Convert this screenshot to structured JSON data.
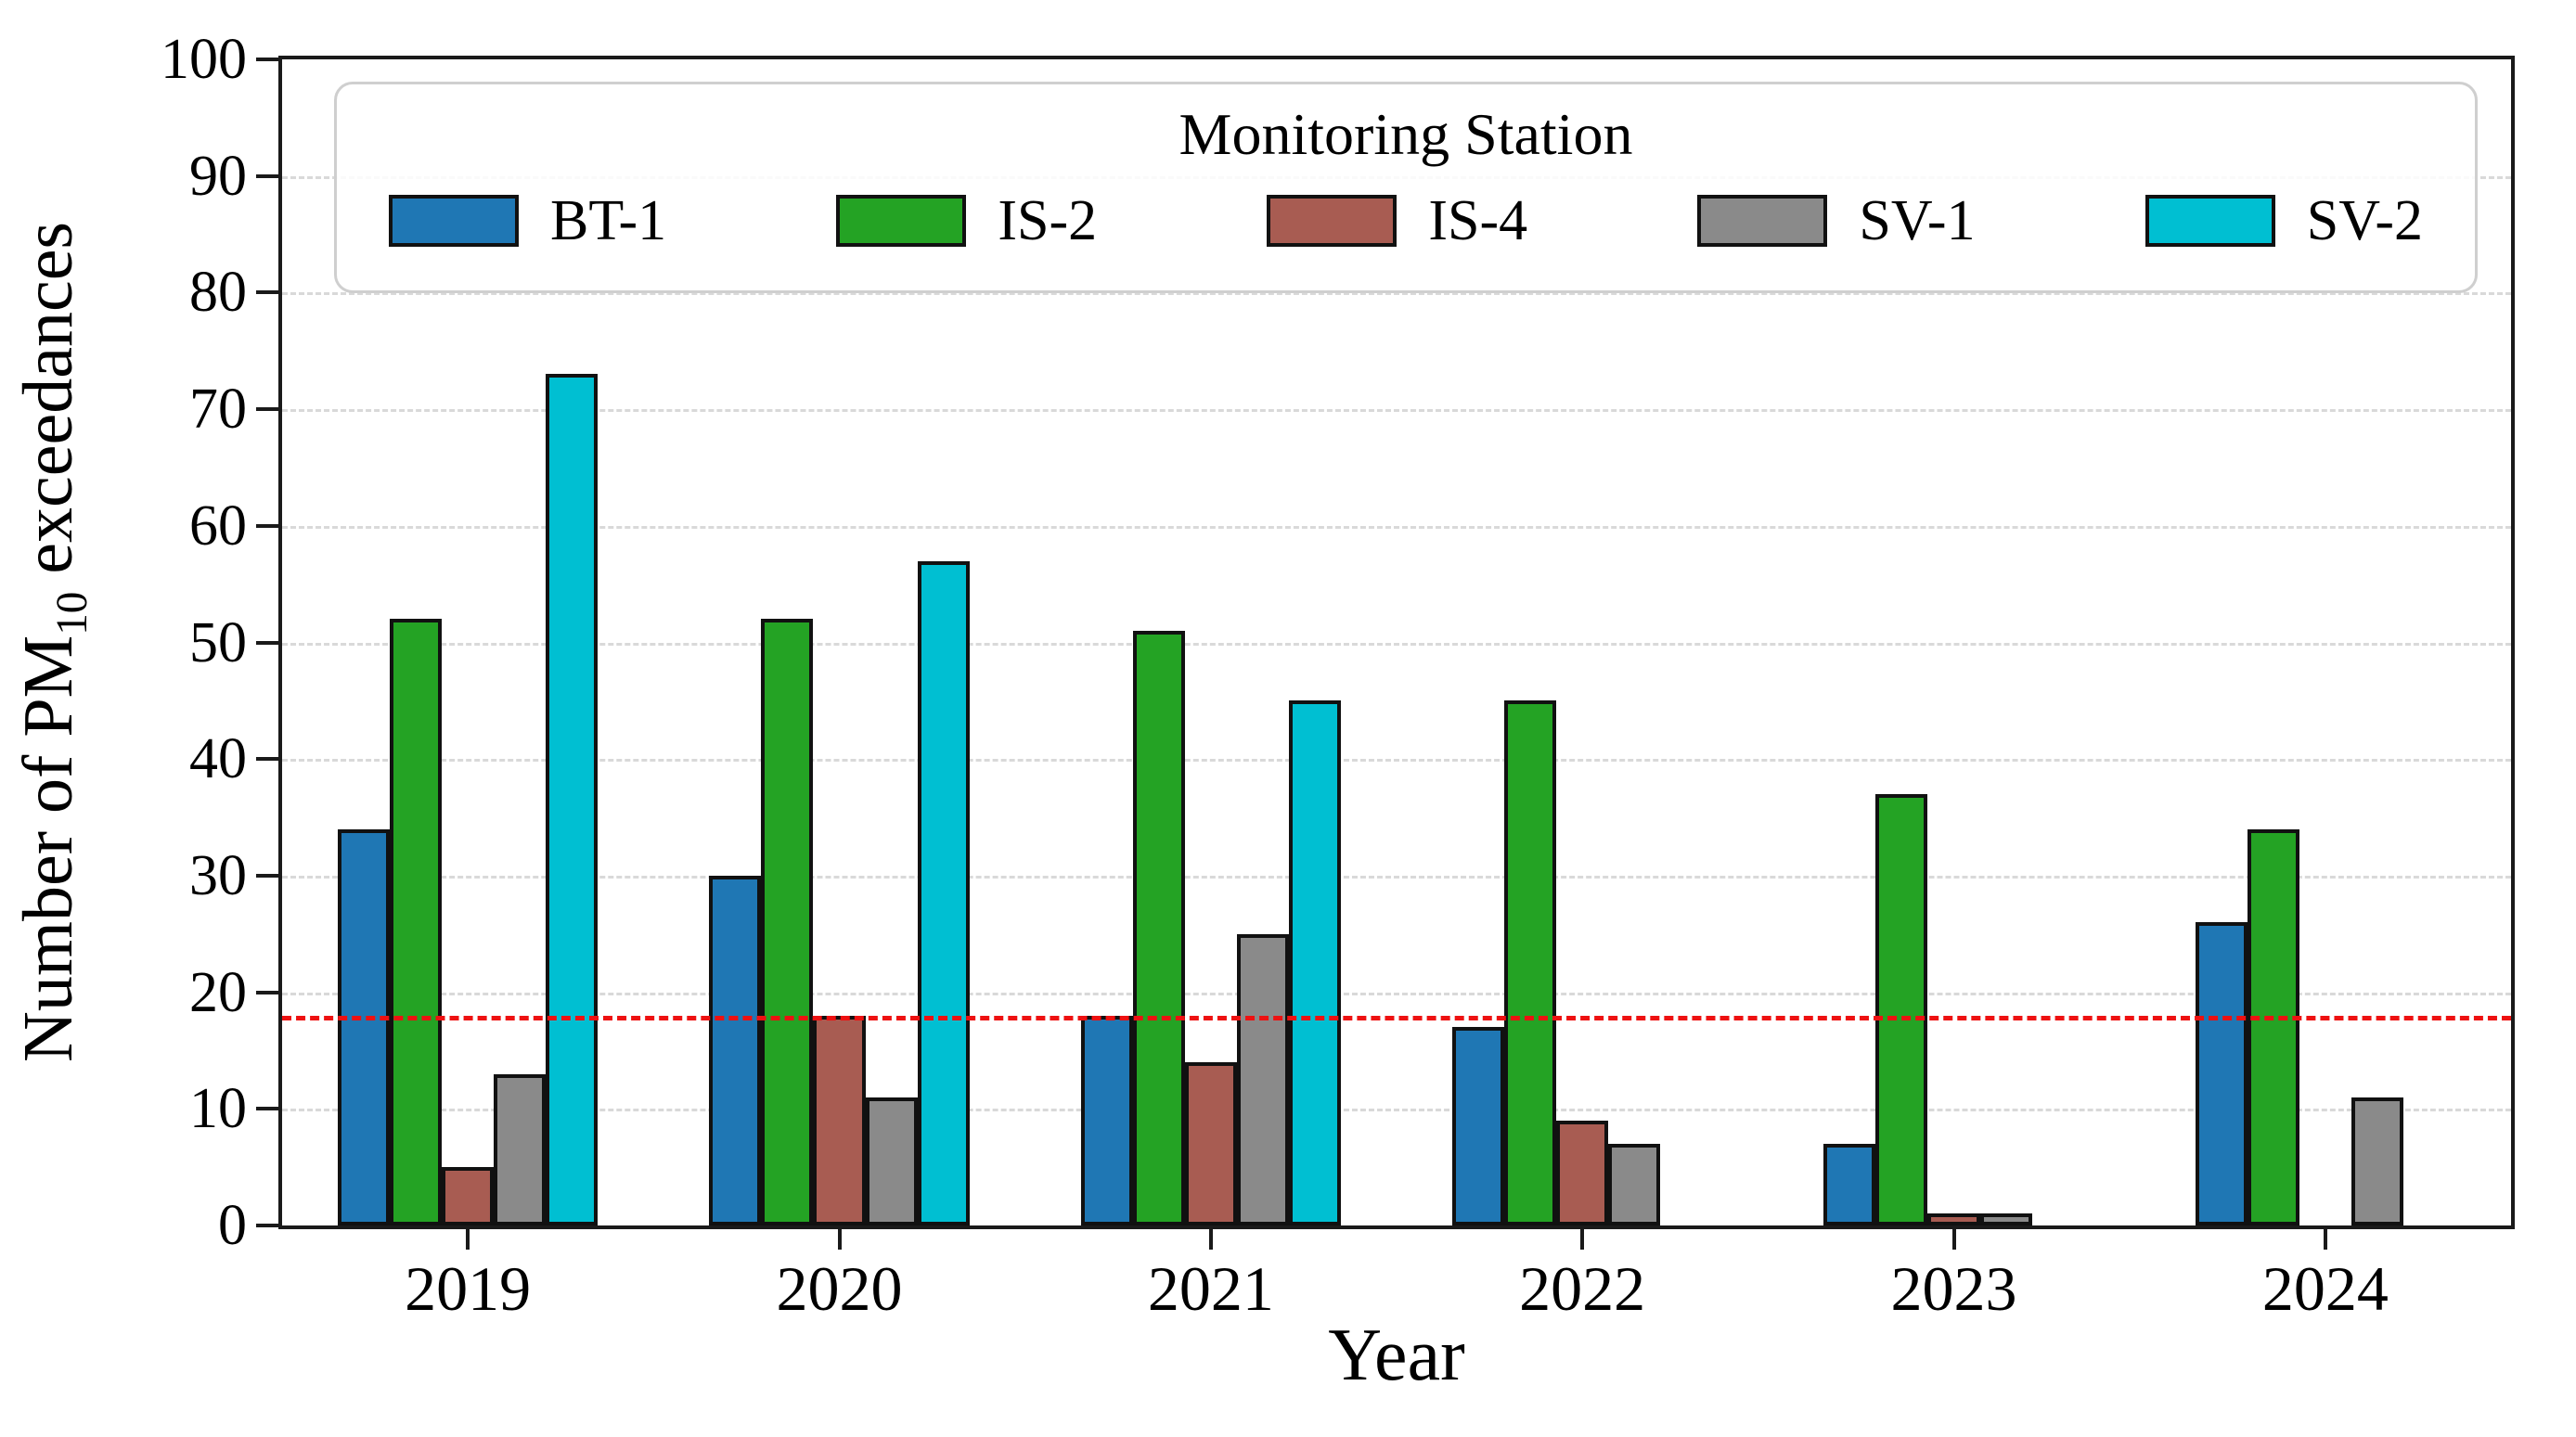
{
  "chart_data": {
    "type": "bar",
    "title": "",
    "xlabel": "Year",
    "ylabel": "Number of PM10 exceedances",
    "ylabel_parts": {
      "prefix": "Number of PM",
      "sub": "10",
      "suffix": " exceedances"
    },
    "categories": [
      "2019",
      "2020",
      "2021",
      "2022",
      "2023",
      "2024"
    ],
    "series": [
      {
        "name": "BT-1",
        "color": "#1f77b4",
        "values": [
          34,
          30,
          18,
          17,
          7,
          26
        ]
      },
      {
        "name": "IS-2",
        "color": "#24a324",
        "values": [
          52,
          52,
          51,
          45,
          37,
          34
        ]
      },
      {
        "name": "IS-4",
        "color": "#a85c52",
        "values": [
          5,
          18,
          14,
          9,
          1,
          0
        ]
      },
      {
        "name": "SV-1",
        "color": "#8a8a8a",
        "values": [
          13,
          11,
          25,
          7,
          1,
          11
        ]
      },
      {
        "name": "SV-2",
        "color": "#00bfd2",
        "values": [
          73,
          57,
          45,
          0,
          0,
          0
        ]
      }
    ],
    "ylim": [
      0,
      100
    ],
    "yticks": [
      0,
      10,
      20,
      30,
      40,
      50,
      60,
      70,
      80,
      90,
      100
    ],
    "grid": "horizontal-dashed",
    "bar_edge_color": "#111111",
    "threshold_line": {
      "value": 18,
      "color": "#ee1111",
      "style": "dashed"
    },
    "legend": {
      "title": "Monitoring Station",
      "position": "top-center"
    }
  }
}
